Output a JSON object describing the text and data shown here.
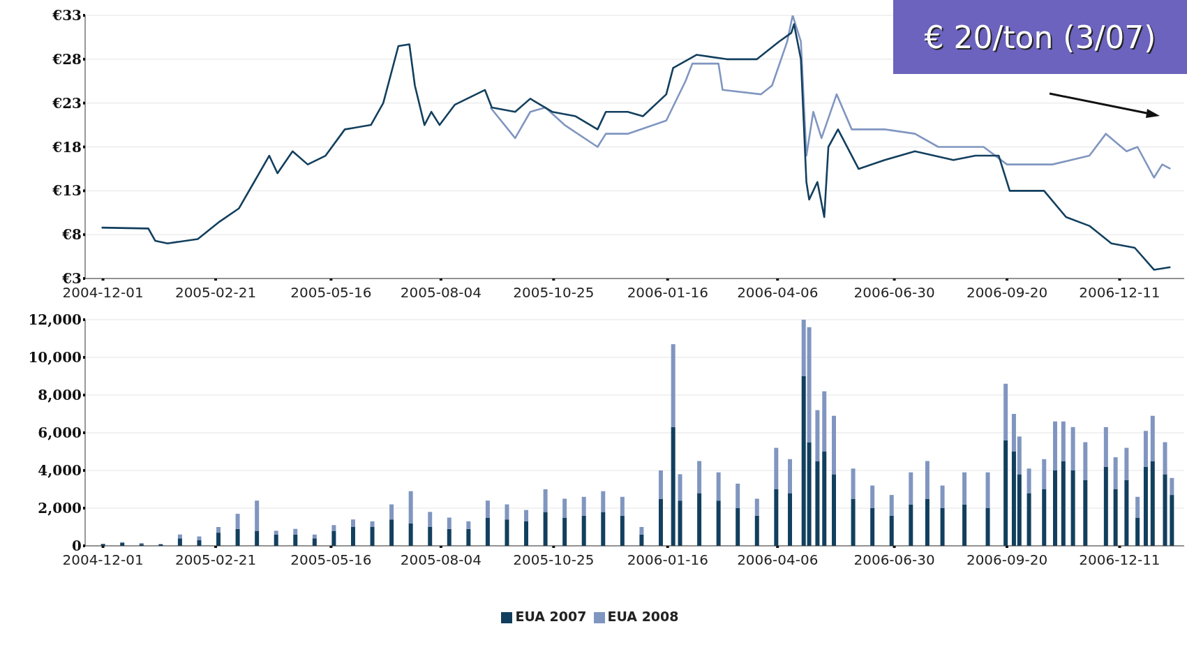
{
  "chart_data": [
    {
      "type": "line",
      "xlim": [
        "2004-11-18",
        "2007-01-27"
      ],
      "xticks": [
        "2004-12-01",
        "2005-02-21",
        "2005-05-16",
        "2005-08-04",
        "2005-10-25",
        "2006-01-16",
        "2006-04-06",
        "2006-06-30",
        "2006-09-20",
        "2006-12-11"
      ],
      "ylim": [
        3,
        33
      ],
      "yticks": [
        {
          "value": 3,
          "label": "€3"
        },
        {
          "value": 8,
          "label": "€8"
        },
        {
          "value": 13,
          "label": "€13"
        },
        {
          "value": 18,
          "label": "€18"
        },
        {
          "value": 23,
          "label": "€23"
        },
        {
          "value": 28,
          "label": "€28"
        },
        {
          "value": 33,
          "label": "€33"
        }
      ],
      "grid": "y",
      "legend": false,
      "annotations": [
        "€ 20/ton (3/07)"
      ],
      "series": [
        {
          "color": "#8096c0",
          "x": [
            "2005-09-09",
            "2005-09-27",
            "2005-10-08",
            "2005-10-19",
            "2005-11-02",
            "2005-11-26",
            "2005-12-02",
            "2005-12-18",
            "2006-01-15",
            "2006-01-29",
            "2006-02-03",
            "2006-02-22",
            "2006-02-25",
            "2006-03-25",
            "2006-04-02",
            "2006-04-13",
            "2006-04-17",
            "2006-04-23",
            "2006-04-27",
            "2006-05-02",
            "2006-05-08",
            "2006-05-19",
            "2006-05-30",
            "2006-06-23",
            "2006-07-15",
            "2006-08-01",
            "2006-09-03",
            "2006-09-20",
            "2006-10-23",
            "2006-11-19",
            "2006-12-01",
            "2006-12-16",
            "2006-12-24",
            "2007-01-05",
            "2007-01-11",
            "2007-01-17"
          ],
          "values": [
            22.5,
            19,
            22,
            22.5,
            20.5,
            18,
            19.5,
            19.5,
            21,
            25.5,
            27.5,
            27.5,
            24.5,
            24,
            25,
            30,
            33,
            30,
            17,
            22,
            19,
            24,
            20,
            20,
            19.5,
            18,
            18,
            16,
            16,
            17,
            19.5,
            17.5,
            18,
            14.5,
            16,
            15.5
          ]
        },
        {
          "color": "#123f5e",
          "x": [
            "2004-11-30",
            "2005-01-03",
            "2005-01-08",
            "2005-01-17",
            "2005-02-08",
            "2005-02-24",
            "2005-03-10",
            "2005-03-21",
            "2005-04-01",
            "2005-04-07",
            "2005-04-18",
            "2005-04-29",
            "2005-05-12",
            "2005-05-26",
            "2005-06-14",
            "2005-06-23",
            "2005-07-04",
            "2005-07-12",
            "2005-07-16",
            "2005-07-23",
            "2005-07-28",
            "2005-08-03",
            "2005-08-14",
            "2005-09-05",
            "2005-09-10",
            "2005-09-27",
            "2005-10-08",
            "2005-10-24",
            "2005-11-10",
            "2005-11-26",
            "2005-12-02",
            "2005-12-18",
            "2005-12-29",
            "2006-01-15",
            "2006-01-20",
            "2006-02-06",
            "2006-02-28",
            "2006-03-22",
            "2006-04-07",
            "2006-04-16",
            "2006-04-18",
            "2006-04-23",
            "2006-04-27",
            "2006-04-29",
            "2006-05-05",
            "2006-05-10",
            "2006-05-13",
            "2006-05-20",
            "2006-06-04",
            "2006-06-23",
            "2006-07-15",
            "2006-08-12",
            "2006-08-28",
            "2006-09-14",
            "2006-09-22",
            "2006-10-17",
            "2006-11-02",
            "2006-11-19",
            "2006-12-05",
            "2006-12-22",
            "2007-01-05",
            "2007-01-17"
          ],
          "values": [
            8.8,
            8.7,
            7.3,
            7,
            7.5,
            9.5,
            11,
            14,
            17,
            15,
            17.5,
            16,
            17,
            20,
            20.5,
            23,
            29.5,
            29.7,
            25,
            20.5,
            22,
            20.5,
            22.8,
            24.5,
            22.5,
            22,
            23.5,
            22,
            21.5,
            20,
            22,
            22,
            21.5,
            24,
            27,
            28.5,
            28,
            28,
            30,
            31,
            32,
            28,
            14,
            12,
            14,
            10,
            18,
            20,
            15.5,
            16.5,
            17.5,
            16.5,
            17,
            17,
            13,
            13,
            10,
            9,
            7,
            6.5,
            4,
            4.3
          ]
        }
      ]
    },
    {
      "type": "bar",
      "stacked": true,
      "xlim": [
        "2004-11-18",
        "2007-01-27"
      ],
      "xticks": [
        "2004-12-01",
        "2005-02-21",
        "2005-05-16",
        "2005-08-04",
        "2005-10-25",
        "2006-01-16",
        "2006-04-06",
        "2006-06-30",
        "2006-09-20",
        "2006-12-11"
      ],
      "ylim": [
        0,
        12000
      ],
      "yticks": [
        {
          "value": 0,
          "label": "0"
        },
        {
          "value": 2000,
          "label": "2,000"
        },
        {
          "value": 4000,
          "label": "4,000"
        },
        {
          "value": 6000,
          "label": "6,000"
        },
        {
          "value": 8000,
          "label": "8,000"
        },
        {
          "value": 10000,
          "label": "10,000"
        },
        {
          "value": 12000,
          "label": "12,000"
        }
      ],
      "grid": "y",
      "legend": "bottom",
      "x": [
        "2004-12-01",
        "2004-12-15",
        "2004-12-29",
        "2005-01-12",
        "2005-01-26",
        "2005-02-09",
        "2005-02-23",
        "2005-03-09",
        "2005-03-23",
        "2005-04-06",
        "2005-04-20",
        "2005-05-04",
        "2005-05-18",
        "2005-06-01",
        "2005-06-15",
        "2005-06-29",
        "2005-07-13",
        "2005-07-27",
        "2005-08-10",
        "2005-08-24",
        "2005-09-07",
        "2005-09-21",
        "2005-10-05",
        "2005-10-19",
        "2005-11-02",
        "2005-11-16",
        "2005-11-30",
        "2005-12-14",
        "2005-12-28",
        "2006-01-11",
        "2006-01-20",
        "2006-01-25",
        "2006-02-08",
        "2006-02-22",
        "2006-03-08",
        "2006-03-22",
        "2006-04-05",
        "2006-04-15",
        "2006-04-25",
        "2006-04-29",
        "2006-05-05",
        "2006-05-10",
        "2006-05-17",
        "2006-05-31",
        "2006-06-14",
        "2006-06-28",
        "2006-07-12",
        "2006-07-24",
        "2006-08-04",
        "2006-08-20",
        "2006-09-06",
        "2006-09-19",
        "2006-09-25",
        "2006-09-29",
        "2006-10-06",
        "2006-10-17",
        "2006-10-25",
        "2006-10-31",
        "2006-11-07",
        "2006-11-16",
        "2006-12-01",
        "2006-12-08",
        "2006-12-16",
        "2006-12-24",
        "2006-12-30",
        "2007-01-04",
        "2007-01-13",
        "2007-01-18"
      ],
      "series": [
        {
          "name": "EUA 2007",
          "color": "#123f5e",
          "values": [
            100,
            150,
            100,
            80,
            400,
            300,
            700,
            900,
            800,
            600,
            600,
            400,
            800,
            1000,
            1000,
            1400,
            1200,
            1000,
            900,
            900,
            1500,
            1400,
            1300,
            1800,
            1500,
            1600,
            1800,
            1600,
            600,
            2500,
            6300,
            2400,
            2800,
            2400,
            2000,
            1600,
            3000,
            2800,
            9000,
            5500,
            4500,
            5000,
            3800,
            2500,
            2000,
            1600,
            2200,
            2500,
            2000,
            2200,
            2000,
            5600,
            5000,
            3800,
            2800,
            3000,
            4000,
            4500,
            4000,
            3500,
            4200,
            3000,
            3500,
            1500,
            4200,
            4500,
            3800,
            2700
          ]
        },
        {
          "name": "EUA 2008",
          "color": "#8096c0",
          "values": [
            0,
            50,
            50,
            20,
            200,
            200,
            300,
            800,
            1600,
            200,
            300,
            200,
            300,
            400,
            300,
            800,
            1700,
            800,
            600,
            400,
            900,
            800,
            600,
            1200,
            1000,
            1000,
            1100,
            1000,
            400,
            1500,
            4400,
            1400,
            1700,
            1500,
            1300,
            900,
            2200,
            1800,
            3000,
            6100,
            2700,
            3200,
            3100,
            1600,
            1200,
            1100,
            1700,
            2000,
            1200,
            1700,
            1900,
            3000,
            2000,
            2000,
            1300,
            1600,
            2600,
            2100,
            2300,
            2000,
            2100,
            1700,
            1700,
            1100,
            1900,
            2400,
            1700,
            900
          ]
        }
      ]
    }
  ]
}
